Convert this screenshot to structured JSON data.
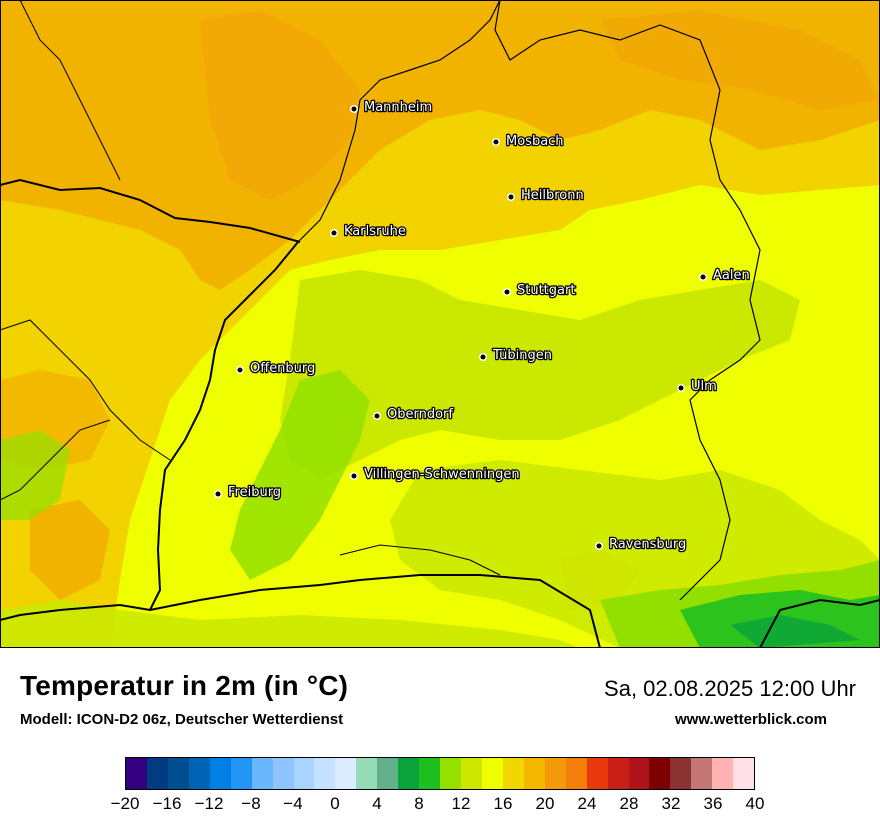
{
  "header": {
    "title": "Temperatur in 2m (in °C)",
    "subtitle": "Modell: ICON-D2 06z, Deutscher Wetterdienst",
    "datetime": "Sa, 02.08.2025 12:00 Uhr",
    "website": "www.wetterblick.com"
  },
  "cities": [
    {
      "name": "Mannheim",
      "id": "mannheim"
    },
    {
      "name": "Mosbach",
      "id": "mosbach"
    },
    {
      "name": "Heilbronn",
      "id": "heilbronn"
    },
    {
      "name": "Karlsruhe",
      "id": "karlsruhe"
    },
    {
      "name": "Aalen",
      "id": "aalen"
    },
    {
      "name": "Stuttgart",
      "id": "stuttgart"
    },
    {
      "name": "Tübingen",
      "id": "tuebingen"
    },
    {
      "name": "Offenburg",
      "id": "offenburg"
    },
    {
      "name": "Ulm",
      "id": "ulm"
    },
    {
      "name": "Oberndorf",
      "id": "oberndorf"
    },
    {
      "name": "Villingen-Schwenningen",
      "id": "villingen-schwenningen"
    },
    {
      "name": "Freiburg",
      "id": "freiburg"
    },
    {
      "name": "Ravensburg",
      "id": "ravensburg"
    }
  ],
  "legend": {
    "colors": [
      "#33007f",
      "#003c7f",
      "#004e8f",
      "#0063b5",
      "#0080e6",
      "#2196f3",
      "#6ab7ff",
      "#8ec5ff",
      "#a8d4ff",
      "#c4e1ff",
      "#dcecff",
      "#94dcb6",
      "#62b08b",
      "#0aa23a",
      "#1fbf1f",
      "#96e000",
      "#cde800",
      "#f0ff00",
      "#f2d600",
      "#f4b700",
      "#f39a0a",
      "#f37f0a",
      "#e8390c",
      "#c91f16",
      "#b0141b",
      "#7f0000",
      "#8b3333",
      "#c57777",
      "#ffb3b3",
      "#ffe0e6"
    ],
    "tick_labels": [
      "−20",
      "−16",
      "−12",
      "−8",
      "−4",
      "0",
      "4",
      "8",
      "12",
      "16",
      "20",
      "24",
      "28",
      "32",
      "36",
      "40"
    ],
    "min": -20,
    "max": 40,
    "unit": "°C"
  },
  "colors": {
    "orange": "#f2b300",
    "light_orange": "#f2d300",
    "yellow": "#f0ff00",
    "lime": "#cbe900",
    "green": "#93e000",
    "dark_green": "#2cc41c",
    "darker_orange": "#f19b0b"
  }
}
